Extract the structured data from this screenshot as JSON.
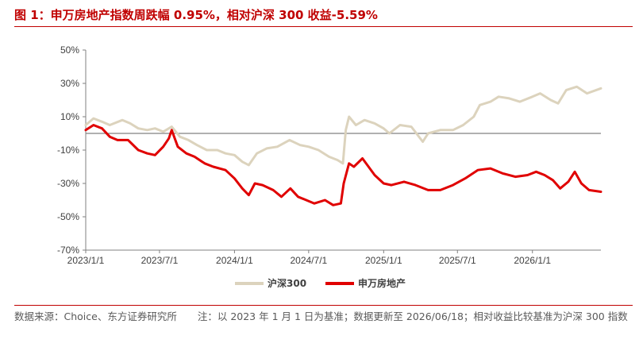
{
  "title": "图 1：申万房地产指数周跌幅 0.95%，相对沪深 300 收益-5.59%",
  "source": {
    "left": "数据来源：Choice、东方证券研究所",
    "right": "注：以 2023 年 1 月 1 日为基准；数据更新至 2026/06/18；相对收益比较基准为沪深 300 指数"
  },
  "colors": {
    "title": "#c00000",
    "csi300": "#dcd3bd",
    "realestate": "#e00000",
    "axis": "#808080"
  },
  "chart_data": {
    "type": "line",
    "x_tick_labels": [
      "2023/1/1",
      "2023/7/1",
      "2024/1/1",
      "2024/7/1",
      "2025/1/1",
      "2025/7/1",
      "2026/1/1"
    ],
    "y_tick_labels": [
      "50%",
      "30%",
      "10%",
      "-10%",
      "-30%",
      "-50%",
      "-70%"
    ],
    "ylim": [
      -70,
      50
    ],
    "x_range": [
      "2023/1/1",
      "2026/6/18"
    ],
    "grid": false,
    "legend_position": "bottom",
    "series": [
      {
        "name": "沪深300",
        "points": [
          [
            "2023/1/1",
            5
          ],
          [
            "2023/1/20",
            9
          ],
          [
            "2023/2/10",
            7
          ],
          [
            "2023/3/1",
            5
          ],
          [
            "2023/4/1",
            8
          ],
          [
            "2023/4/20",
            6
          ],
          [
            "2023/5/10",
            3
          ],
          [
            "2023/6/1",
            2
          ],
          [
            "2023/6/20",
            3
          ],
          [
            "2023/7/10",
            1
          ],
          [
            "2023/7/31",
            4
          ],
          [
            "2023/8/20",
            -2
          ],
          [
            "2023/9/10",
            -4
          ],
          [
            "2023/10/1",
            -7
          ],
          [
            "2023/10/25",
            -10
          ],
          [
            "2023/11/20",
            -10
          ],
          [
            "2023/12/10",
            -12
          ],
          [
            "2024/1/1",
            -13
          ],
          [
            "2024/1/20",
            -17
          ],
          [
            "2024/2/5",
            -19
          ],
          [
            "2024/2/25",
            -12
          ],
          [
            "2024/3/20",
            -9
          ],
          [
            "2024/4/15",
            -8
          ],
          [
            "2024/5/15",
            -4
          ],
          [
            "2024/6/10",
            -7
          ],
          [
            "2024/7/1",
            -8
          ],
          [
            "2024/7/25",
            -10
          ],
          [
            "2024/8/20",
            -14
          ],
          [
            "2024/9/10",
            -16
          ],
          [
            "2024/9/23",
            -18
          ],
          [
            "2024/9/30",
            2
          ],
          [
            "2024/10/8",
            10
          ],
          [
            "2024/10/25",
            5
          ],
          [
            "2024/11/15",
            8
          ],
          [
            "2024/12/10",
            6
          ],
          [
            "2025/1/1",
            3
          ],
          [
            "2025/1/15",
            0
          ],
          [
            "2025/2/10",
            5
          ],
          [
            "2025/3/10",
            4
          ],
          [
            "2025/4/7",
            -5
          ],
          [
            "2025/4/20",
            0
          ],
          [
            "2025/5/20",
            2
          ],
          [
            "2025/6/20",
            2
          ],
          [
            "2025/7/15",
            5
          ],
          [
            "2025/8/10",
            10
          ],
          [
            "2025/8/25",
            17
          ],
          [
            "2025/9/20",
            19
          ],
          [
            "2025/10/10",
            22
          ],
          [
            "2025/11/5",
            21
          ],
          [
            "2025/12/1",
            19
          ],
          [
            "2026/1/1",
            22
          ],
          [
            "2026/1/20",
            24
          ],
          [
            "2026/2/15",
            20
          ],
          [
            "2026/3/5",
            18
          ],
          [
            "2026/3/25",
            26
          ],
          [
            "2026/4/20",
            28
          ],
          [
            "2026/5/15",
            24
          ],
          [
            "2026/6/18",
            27
          ]
        ]
      },
      {
        "name": "申万房地产",
        "points": [
          [
            "2023/1/1",
            2
          ],
          [
            "2023/1/20",
            5
          ],
          [
            "2023/2/10",
            3
          ],
          [
            "2023/3/1",
            -2
          ],
          [
            "2023/3/20",
            -4
          ],
          [
            "2023/4/15",
            -4
          ],
          [
            "2023/5/10",
            -10
          ],
          [
            "2023/6/1",
            -12
          ],
          [
            "2023/6/20",
            -13
          ],
          [
            "2023/7/10",
            -8
          ],
          [
            "2023/7/24",
            -3
          ],
          [
            "2023/7/31",
            2
          ],
          [
            "2023/8/15",
            -8
          ],
          [
            "2023/9/5",
            -12
          ],
          [
            "2023/9/25",
            -14
          ],
          [
            "2023/10/20",
            -18
          ],
          [
            "2023/11/10",
            -20
          ],
          [
            "2023/12/10",
            -22
          ],
          [
            "2024/1/1",
            -27
          ],
          [
            "2024/1/20",
            -33
          ],
          [
            "2024/2/5",
            -37
          ],
          [
            "2024/2/20",
            -30
          ],
          [
            "2024/3/10",
            -31
          ],
          [
            "2024/4/5",
            -34
          ],
          [
            "2024/4/25",
            -38
          ],
          [
            "2024/5/17",
            -33
          ],
          [
            "2024/6/5",
            -38
          ],
          [
            "2024/6/25",
            -40
          ],
          [
            "2024/7/15",
            -42
          ],
          [
            "2024/8/10",
            -40
          ],
          [
            "2024/8/30",
            -43
          ],
          [
            "2024/9/18",
            -42
          ],
          [
            "2024/9/25",
            -30
          ],
          [
            "2024/10/8",
            -18
          ],
          [
            "2024/10/20",
            -20
          ],
          [
            "2024/11/10",
            -15
          ],
          [
            "2024/12/10",
            -25
          ],
          [
            "2025/1/1",
            -30
          ],
          [
            "2025/1/20",
            -31
          ],
          [
            "2025/2/20",
            -29
          ],
          [
            "2025/3/20",
            -31
          ],
          [
            "2025/4/20",
            -34
          ],
          [
            "2025/5/20",
            -34
          ],
          [
            "2025/6/20",
            -31
          ],
          [
            "2025/7/20",
            -27
          ],
          [
            "2025/8/20",
            -22
          ],
          [
            "2025/9/20",
            -21
          ],
          [
            "2025/10/20",
            -24
          ],
          [
            "2025/11/20",
            -26
          ],
          [
            "2025/12/20",
            -25
          ],
          [
            "2026/1/10",
            -23
          ],
          [
            "2026/1/31",
            -25
          ],
          [
            "2026/2/20",
            -28
          ],
          [
            "2026/3/10",
            -33
          ],
          [
            "2026/3/30",
            -29
          ],
          [
            "2026/4/15",
            -23
          ],
          [
            "2026/5/1",
            -30
          ],
          [
            "2026/5/20",
            -34
          ],
          [
            "2026/6/18",
            -35
          ]
        ]
      }
    ]
  }
}
